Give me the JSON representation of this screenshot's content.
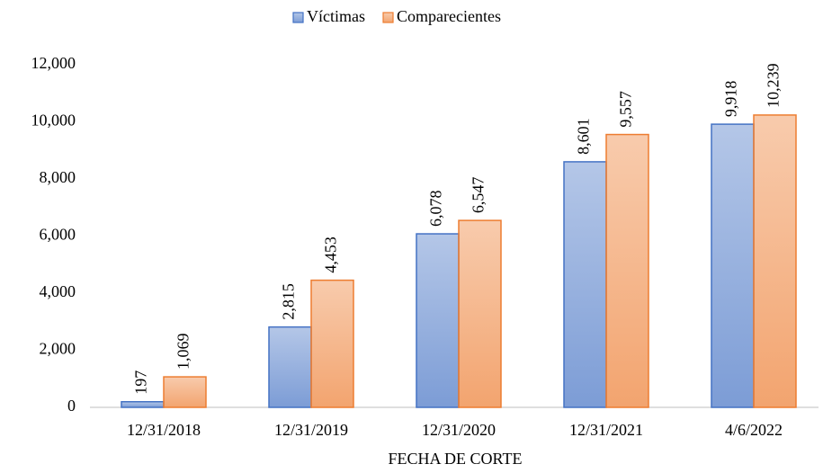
{
  "chart_data": {
    "type": "bar",
    "x_label": "FECHA DE CORTE",
    "categories": [
      "12/31/2018",
      "12/31/2019",
      "12/31/2020",
      "12/31/2021",
      "4/6/2022"
    ],
    "series": [
      {
        "name": "Víctimas",
        "color": "#4472c4",
        "values": [
          197,
          2815,
          6078,
          8601,
          9918
        ],
        "value_labels": [
          "197",
          "2,815",
          "6,078",
          "8,601",
          "9,918"
        ]
      },
      {
        "name": "Comparecientes",
        "color": "#ed7d31",
        "values": [
          1069,
          4453,
          6547,
          9557,
          10239
        ],
        "value_labels": [
          "1,069",
          "4,453",
          "6,547",
          "9,557",
          "10,239"
        ]
      }
    ],
    "ylim": [
      0,
      12000
    ],
    "yticks": [
      0,
      {
        "value": 2000,
        "label": "2,000"
      },
      {
        "value": 4000,
        "label": "4,000"
      },
      {
        "value": 6000,
        "label": "6,000"
      },
      {
        "value": 8000,
        "label": "8,000"
      },
      {
        "value": 10000,
        "label": "10,000"
      },
      {
        "value": 12000,
        "label": "12,000"
      }
    ],
    "grid": false,
    "legend": "top"
  }
}
